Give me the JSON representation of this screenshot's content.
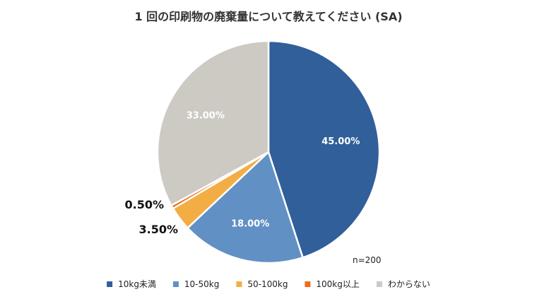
{
  "chart_data": {
    "type": "pie",
    "title": "1 回の印刷物の廃棄量について教えてください (SA)",
    "sample_size": "n=200",
    "slices": [
      {
        "label": "10kg未満",
        "value": 45.0,
        "value_label": "45.00%",
        "color": "#305F9A",
        "label_position": "inside"
      },
      {
        "label": "10-50kg",
        "value": 18.0,
        "value_label": "18.00%",
        "color": "#6190C4",
        "label_position": "inside"
      },
      {
        "label": "50-100kg",
        "value": 3.5,
        "value_label": "3.50%",
        "color": "#F2AE44",
        "label_position": "outside"
      },
      {
        "label": "100kg以上",
        "value": 0.5,
        "value_label": "0.50%",
        "color": "#EE6B1B",
        "label_position": "outside"
      },
      {
        "label": "わからない",
        "value": 33.0,
        "value_label": "33.00%",
        "color": "#CDCAC4",
        "label_position": "inside"
      }
    ],
    "start_angle_deg": 0,
    "direction": "clockwise",
    "legend_placement": "bottom"
  }
}
